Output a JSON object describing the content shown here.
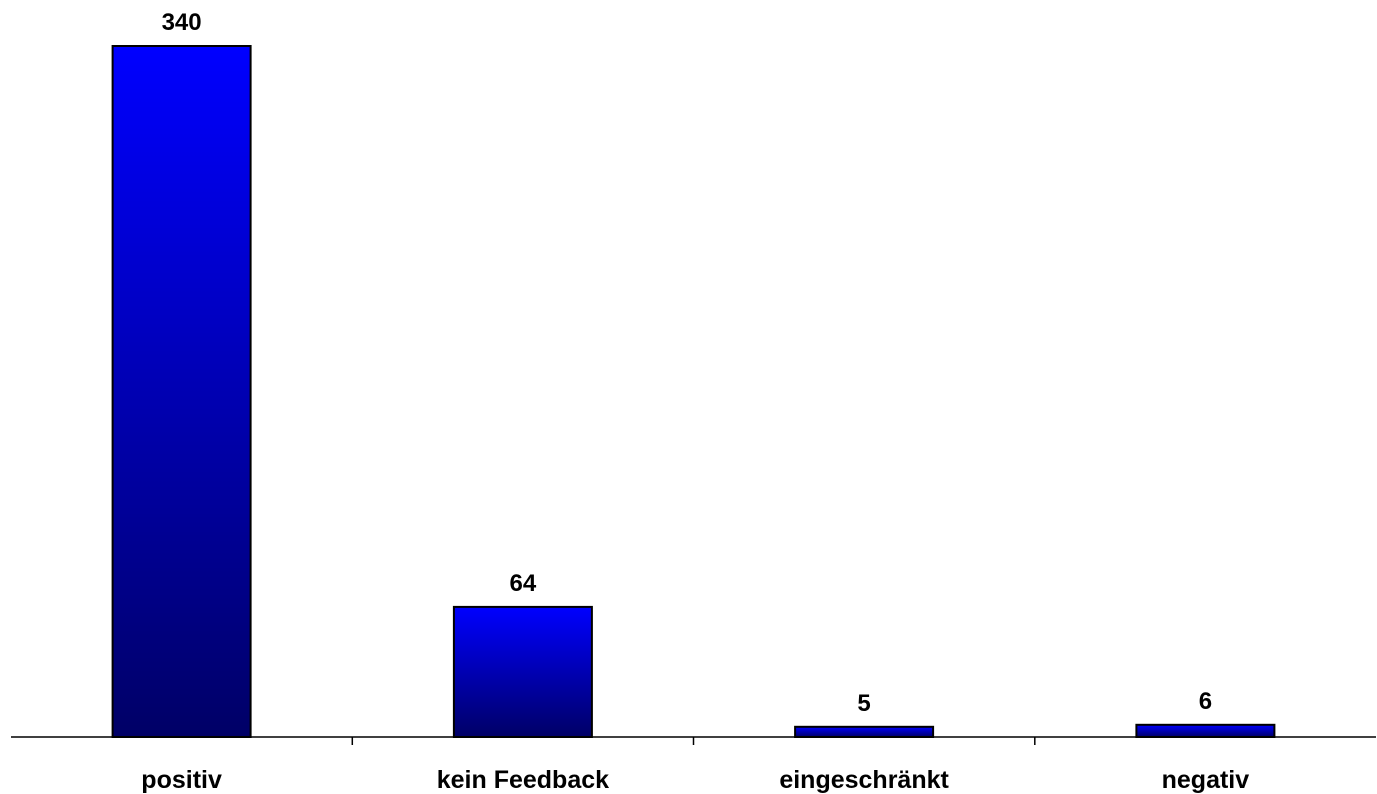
{
  "chart_data": {
    "type": "bar",
    "categories": [
      "positiv",
      "kein Feedback",
      "eingeschränkt",
      "negativ"
    ],
    "values": [
      340,
      64,
      5,
      6
    ],
    "data_labels": [
      "340",
      "64",
      "5",
      "6"
    ],
    "title": "",
    "xlabel": "",
    "ylabel": "",
    "ylim": [
      0,
      340
    ],
    "grid": false,
    "legend": "none",
    "colors": {
      "bar_top": "#0000ff",
      "bar_bottom": "#000066",
      "bar_stroke": "#000000",
      "axis": "#000000",
      "text": "#000000",
      "background": "#ffffff"
    }
  }
}
